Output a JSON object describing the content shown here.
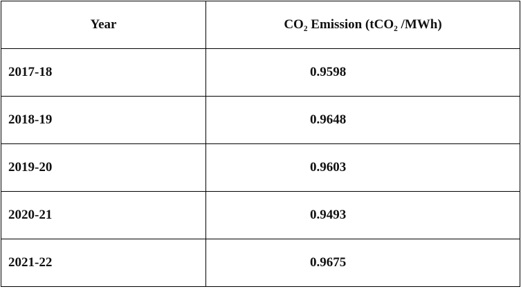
{
  "table": {
    "header": [
      "Year",
      "CO₂ Emission (tCO₂ /MWh)"
    ],
    "rows": [
      [
        "2017-18",
        "0.9598"
      ],
      [
        "2018-19",
        "0.9648"
      ],
      [
        "2019-20",
        "0.9603"
      ],
      [
        "2020-21",
        "0.9493"
      ],
      [
        "2021-22",
        "0.9675"
      ]
    ]
  }
}
